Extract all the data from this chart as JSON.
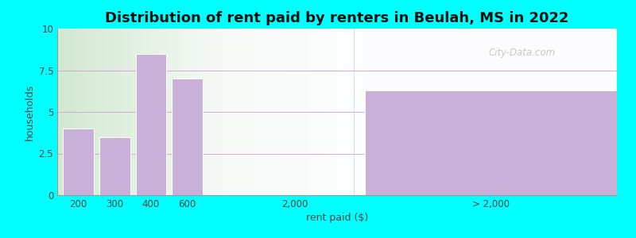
{
  "title": "Distribution of rent paid by renters in Beulah, MS in 2022",
  "xlabel": "rent paid ($)",
  "ylabel": "households",
  "bar_positions": [
    0,
    1,
    2,
    3
  ],
  "bar_labels": [
    "200",
    "300",
    "400",
    "600"
  ],
  "bar_values": [
    4.0,
    3.5,
    8.5,
    7.0
  ],
  "big_bar_value": 6.3,
  "big_bar_label": "> 2,000",
  "bar_color": "#c8b0d8",
  "ylim": [
    0,
    10
  ],
  "yticks": [
    0,
    2.5,
    5,
    7.5,
    10
  ],
  "background_color": "#00ffff",
  "watermark": "City-Data.com",
  "title_fontsize": 13,
  "axis_label_fontsize": 9,
  "tick_fontsize": 8.5
}
